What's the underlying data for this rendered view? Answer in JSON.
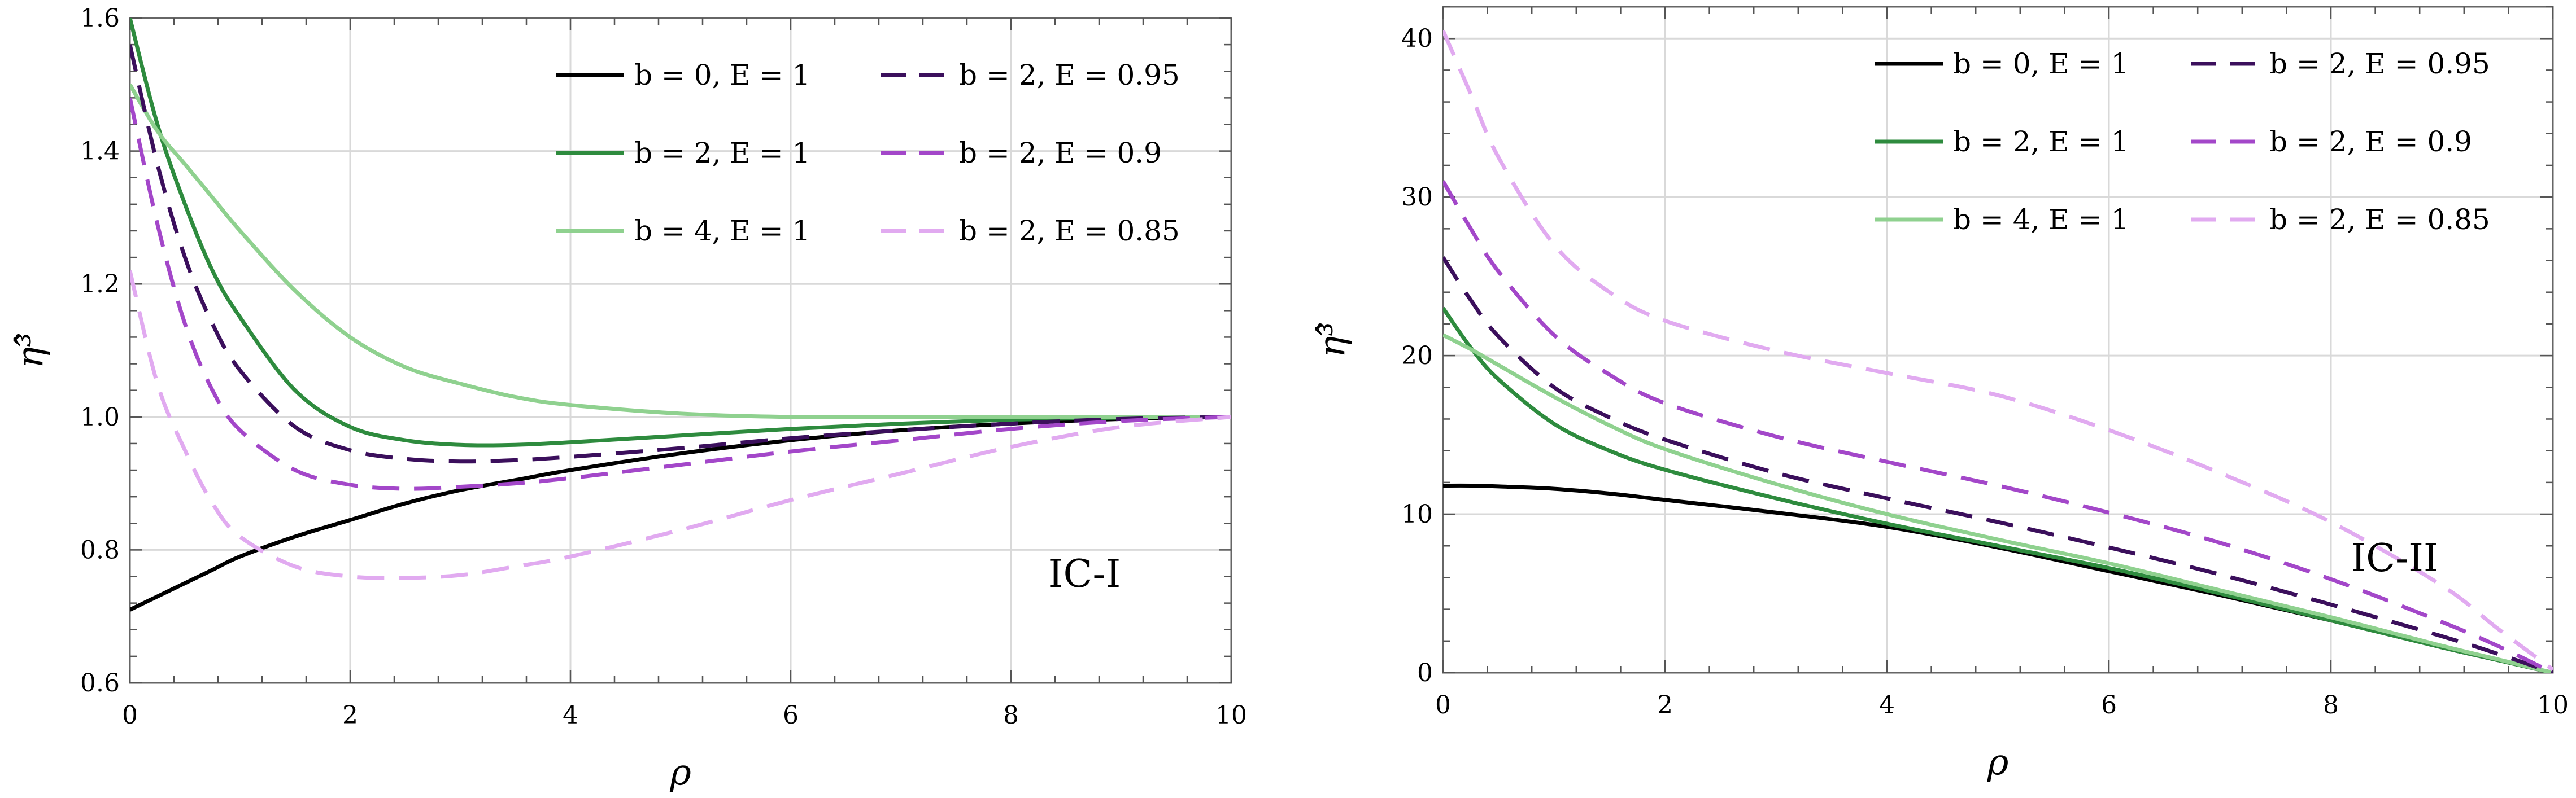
{
  "chart_data": [
    {
      "type": "line",
      "panel": "left",
      "annotation": "IC-I",
      "xlabel": "ρ",
      "ylabel": "η³̂",
      "xlim": [
        0,
        10
      ],
      "ylim": [
        0.6,
        1.6
      ],
      "xticks": [
        0,
        2,
        4,
        6,
        8,
        10
      ],
      "yticks": [
        0.6,
        0.8,
        1.0,
        1.2,
        1.4,
        1.6
      ],
      "grid": true,
      "legend": "top-right",
      "x": [
        0,
        0.25,
        0.5,
        0.75,
        1,
        1.5,
        2,
        2.5,
        3,
        3.5,
        4,
        5,
        6,
        7,
        8,
        9,
        10
      ],
      "series": [
        {
          "name": "b = 0,  E = 1",
          "color": "#000000",
          "dash": "solid",
          "values": [
            0.71,
            0.73,
            0.75,
            0.77,
            0.79,
            0.82,
            0.845,
            0.87,
            0.89,
            0.905,
            0.92,
            0.945,
            0.965,
            0.98,
            0.99,
            0.997,
            1.0
          ]
        },
        {
          "name": "b = 2,  E = 1",
          "color": "#2e8b3e",
          "dash": "solid",
          "values": [
            1.6,
            1.44,
            1.32,
            1.22,
            1.15,
            1.04,
            0.985,
            0.965,
            0.958,
            0.958,
            0.962,
            0.972,
            0.982,
            0.99,
            0.996,
            0.999,
            1.0
          ]
        },
        {
          "name": "b = 4,  E = 1",
          "color": "#8fd18f",
          "dash": "solid",
          "values": [
            1.5,
            1.43,
            1.38,
            1.33,
            1.28,
            1.19,
            1.12,
            1.075,
            1.05,
            1.03,
            1.018,
            1.005,
            1.0,
            1.0,
            1.0,
            1.0,
            1.0
          ]
        },
        {
          "name": "b = 2,  E = 0.95",
          "color": "#3b0f5c",
          "dash": "dashed",
          "values": [
            1.56,
            1.38,
            1.24,
            1.14,
            1.07,
            0.985,
            0.95,
            0.937,
            0.933,
            0.935,
            0.94,
            0.953,
            0.968,
            0.98,
            0.99,
            0.997,
            1.0
          ]
        },
        {
          "name": "b = 2,  E = 0.9",
          "color": "#a347c9",
          "dash": "dashed",
          "values": [
            1.48,
            1.29,
            1.14,
            1.04,
            0.98,
            0.92,
            0.898,
            0.892,
            0.895,
            0.9,
            0.908,
            0.928,
            0.948,
            0.965,
            0.982,
            0.994,
            1.0
          ]
        },
        {
          "name": "b = 2,  E = 0.85",
          "color": "#e1aaf0",
          "dash": "dashed",
          "values": [
            1.22,
            1.05,
            0.95,
            0.87,
            0.82,
            0.775,
            0.76,
            0.758,
            0.762,
            0.775,
            0.79,
            0.83,
            0.875,
            0.915,
            0.955,
            0.985,
            1.0
          ]
        }
      ]
    },
    {
      "type": "line",
      "panel": "right",
      "annotation": "IC-II",
      "xlabel": "ρ",
      "ylabel": "η³̂",
      "xlim": [
        0,
        10
      ],
      "ylim": [
        0,
        42
      ],
      "xticks": [
        0,
        2,
        4,
        6,
        8,
        10
      ],
      "yticks": [
        0,
        10,
        20,
        30,
        40
      ],
      "grid": true,
      "legend": "top-right",
      "x": [
        0,
        0.25,
        0.5,
        1,
        1.5,
        2,
        3,
        4,
        5,
        6,
        7,
        8,
        9,
        9.5,
        10
      ],
      "series": [
        {
          "name": "b = 0,  E = 1",
          "color": "#000000",
          "dash": "solid",
          "values": [
            11.8,
            11.8,
            11.75,
            11.6,
            11.3,
            10.9,
            10.1,
            9.2,
            7.9,
            6.4,
            4.9,
            3.3,
            1.6,
            0.8,
            0.0
          ]
        },
        {
          "name": "b = 2,  E = 1",
          "color": "#2e8b3e",
          "dash": "solid",
          "values": [
            23.0,
            20.5,
            18.5,
            15.7,
            14.0,
            12.8,
            11.0,
            9.4,
            8.0,
            6.6,
            5.0,
            3.3,
            1.6,
            0.8,
            0.0
          ]
        },
        {
          "name": "b = 4,  E = 1",
          "color": "#8fd18f",
          "dash": "solid",
          "values": [
            21.3,
            20.4,
            19.4,
            17.4,
            15.6,
            14.1,
            11.9,
            10.0,
            8.4,
            6.9,
            5.2,
            3.5,
            1.7,
            0.85,
            0.0
          ]
        },
        {
          "name": "b = 2,  E = 0.95",
          "color": "#3b0f5c",
          "dash": "dashed",
          "values": [
            26.2,
            23.5,
            21.2,
            18.0,
            16.1,
            14.7,
            12.6,
            11.0,
            9.5,
            7.9,
            6.2,
            4.3,
            2.3,
            1.2,
            0.0
          ]
        },
        {
          "name": "b = 2,  E = 0.9",
          "color": "#a347c9",
          "dash": "dashed",
          "values": [
            31.0,
            28.0,
            25.3,
            21.3,
            18.8,
            17.0,
            14.9,
            13.3,
            11.8,
            10.1,
            8.2,
            5.9,
            3.2,
            1.7,
            0.0
          ]
        },
        {
          "name": "b = 2,  E = 0.85",
          "color": "#e1aaf0",
          "dash": "dashed",
          "values": [
            40.5,
            36.5,
            32.5,
            27.0,
            24.0,
            22.2,
            20.3,
            18.9,
            17.5,
            15.3,
            12.6,
            9.5,
            5.5,
            2.8,
            0.2
          ]
        }
      ]
    }
  ]
}
